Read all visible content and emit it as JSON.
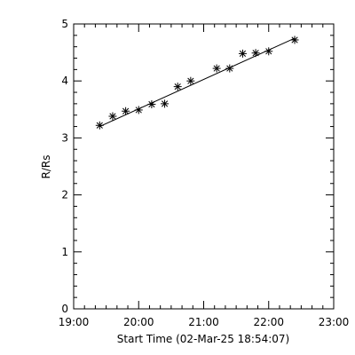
{
  "chart_data": {
    "type": "scatter",
    "title": "",
    "xlabel": "Start Time (02-Mar-25 18:54:07)",
    "ylabel": "R/Rs",
    "xlim": [
      "19:00",
      "23:00"
    ],
    "ylim": [
      0,
      5
    ],
    "xticks": [
      "19:00",
      "20:00",
      "21:00",
      "22:00",
      "23:00"
    ],
    "yticks": [
      "0",
      "1",
      "2",
      "3",
      "4",
      "5"
    ],
    "grid": false,
    "legend": "none",
    "marker": "asterisk",
    "fit_line": {
      "start": {
        "x": "19:24",
        "y": 3.2
      },
      "end": {
        "x": "22:24",
        "y": 4.75
      }
    },
    "series": [
      {
        "points": [
          {
            "x": "19:24",
            "y": 3.22
          },
          {
            "x": "19:36",
            "y": 3.38
          },
          {
            "x": "19:48",
            "y": 3.47
          },
          {
            "x": "20:00",
            "y": 3.49
          },
          {
            "x": "20:12",
            "y": 3.59
          },
          {
            "x": "20:24",
            "y": 3.6
          },
          {
            "x": "20:36",
            "y": 3.9
          },
          {
            "x": "20:48",
            "y": 4.0
          },
          {
            "x": "21:12",
            "y": 4.22
          },
          {
            "x": "21:24",
            "y": 4.22
          },
          {
            "x": "21:36",
            "y": 4.48
          },
          {
            "x": "21:48",
            "y": 4.49
          },
          {
            "x": "22:00",
            "y": 4.52
          },
          {
            "x": "22:24",
            "y": 4.72
          }
        ]
      }
    ]
  }
}
